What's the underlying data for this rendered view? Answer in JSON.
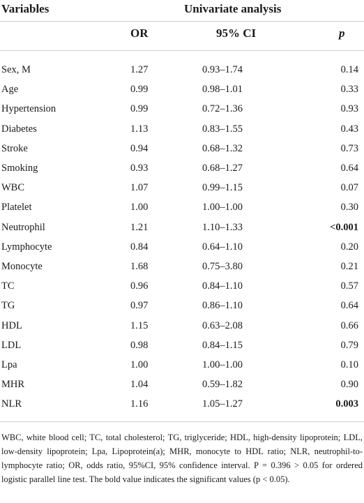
{
  "header": {
    "variables": "Variables",
    "group": "Univariate analysis",
    "or": "OR",
    "ci": "95% CI",
    "p": "p"
  },
  "rows": [
    {
      "variable": "Sex, M",
      "or": "1.27",
      "ci": "0.93–1.74",
      "p": "0.14",
      "bold": false
    },
    {
      "variable": "Age",
      "or": "0.99",
      "ci": "0.98–1.01",
      "p": "0.33",
      "bold": false
    },
    {
      "variable": "Hypertension",
      "or": "0.99",
      "ci": "0.72–1.36",
      "p": "0.93",
      "bold": false
    },
    {
      "variable": "Diabetes",
      "or": "1.13",
      "ci": "0.83–1.55",
      "p": "0.43",
      "bold": false
    },
    {
      "variable": "Stroke",
      "or": "0.94",
      "ci": "0.68–1.32",
      "p": "0.73",
      "bold": false
    },
    {
      "variable": "Smoking",
      "or": "0.93",
      "ci": "0.68–1.27",
      "p": "0.64",
      "bold": false
    },
    {
      "variable": "WBC",
      "or": "1.07",
      "ci": "0.99–1.15",
      "p": "0.07",
      "bold": false
    },
    {
      "variable": "Platelet",
      "or": "1.00",
      "ci": "1.00–1.00",
      "p": "0.30",
      "bold": false
    },
    {
      "variable": "Neutrophil",
      "or": "1.21",
      "ci": "1.10–1.33",
      "p": "<0.001",
      "bold": true
    },
    {
      "variable": "Lymphocyte",
      "or": "0.84",
      "ci": "0.64–1.10",
      "p": "0.20",
      "bold": false
    },
    {
      "variable": "Monocyte",
      "or": "1.68",
      "ci": "0.75–3.80",
      "p": "0.21",
      "bold": false
    },
    {
      "variable": "TC",
      "or": "0.96",
      "ci": "0.84–1.10",
      "p": "0.57",
      "bold": false
    },
    {
      "variable": "TG",
      "or": "0.97",
      "ci": "0.86–1.10",
      "p": "0.64",
      "bold": false
    },
    {
      "variable": "HDL",
      "or": "1.15",
      "ci": "0.63–2.08",
      "p": "0.66",
      "bold": false
    },
    {
      "variable": "LDL",
      "or": "0.98",
      "ci": "0.84–1.15",
      "p": "0.79",
      "bold": false
    },
    {
      "variable": "Lpa",
      "or": "1.00",
      "ci": "1.00–1.00",
      "p": "0.10",
      "bold": false
    },
    {
      "variable": "MHR",
      "or": "1.04",
      "ci": "0.59–1.82",
      "p": "0.90",
      "bold": false
    },
    {
      "variable": "NLR",
      "or": "1.16",
      "ci": "1.05–1.27",
      "p": "0.003",
      "bold": true
    }
  ],
  "footnote": "WBC, white blood cell; TC, total cholesterol; TG, triglyceride; HDL, high-density lipoprotein; LDL, low-density lipoprotein; Lpa, Lipoprotein(a); MHR, monocyte to HDL ratio; NLR, neutrophil-to-lymphocyte ratio; OR, odds ratio, 95%CI, 95% confidence interval. P = 0.396 > 0.05 for ordered logistic parallel line test. The bold value indicates the significant values (p < 0.05)."
}
